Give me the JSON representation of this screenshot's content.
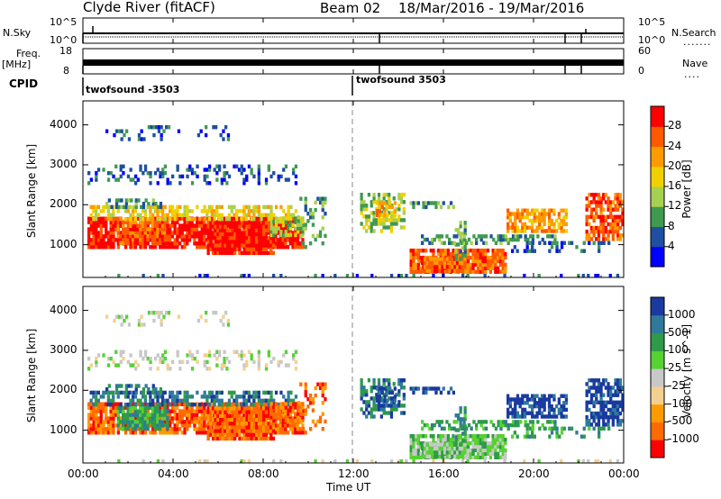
{
  "header": {
    "station": "Clyde River (fitACF)",
    "beam": "Beam 02",
    "dates": "18/Mar/2016 - 19/Mar/2016"
  },
  "strip_labels": {
    "nsky": "N.Sky",
    "nsearch": "N.Search",
    "freq_line1": "Freq.",
    "freq_line2": "[MHz]",
    "nave": "Nave",
    "cpid": "CPID",
    "dots": "......."
  },
  "strip_ticks": {
    "nsky_top": "10^5",
    "nsky_bottom": "10^0",
    "nsearch_top": "10^5",
    "nsearch_bottom": "10^0",
    "freq_top": "18",
    "freq_bottom": "8",
    "nave_top": "60",
    "nave_bottom": "0"
  },
  "cpid_segments": [
    "twofsound -3503",
    "twofsound 3503"
  ],
  "colors": {
    "power": [
      "#0000ff",
      "#1f4fa0",
      "#3f9a50",
      "#a8d050",
      "#f0d000",
      "#ff9a00",
      "#ff5a00",
      "#ff0000"
    ],
    "velocity": [
      "#ff0000",
      "#ff6a00",
      "#ff9a00",
      "#f4d090",
      "#c8c8c8",
      "#56d232",
      "#2f9a4a",
      "#2f7a9a",
      "#1a3aa0"
    ]
  },
  "chart_data": [
    {
      "type": "heatmap",
      "name": "power",
      "ylabel": "Slant Range [km]",
      "xlabel": "Time UT",
      "x_ticks": [
        "00:00",
        "04:00",
        "08:00",
        "12:00",
        "16:00",
        "20:00",
        "00:00"
      ],
      "x_range_hours": [
        0,
        24
      ],
      "y_ticks": [
        "1000",
        "2000",
        "3000",
        "4000"
      ],
      "ylim_km": [
        180,
        4600
      ],
      "colorbar_label": "Power [dB]",
      "colorbar_ticks": [
        "4",
        "8",
        "12",
        "16",
        "20",
        "24",
        "28"
      ],
      "colorbar_range": [
        0,
        32
      ]
    },
    {
      "type": "heatmap",
      "name": "velocity",
      "ylabel": "Slant Range [km]",
      "xlabel": "Time UT",
      "x_ticks": [
        "00:00",
        "04:00",
        "08:00",
        "12:00",
        "16:00",
        "20:00",
        "00:00"
      ],
      "x_range_hours": [
        0,
        24
      ],
      "y_ticks": [
        "1000",
        "2000",
        "3000",
        "4000"
      ],
      "ylim_km": [
        180,
        4600
      ],
      "colorbar_label": "Velocity [m s^-1]",
      "colorbar_ticks": [
        "1000",
        "500",
        "100",
        "25",
        "-25",
        "-100",
        "-500",
        "-1000"
      ]
    }
  ]
}
